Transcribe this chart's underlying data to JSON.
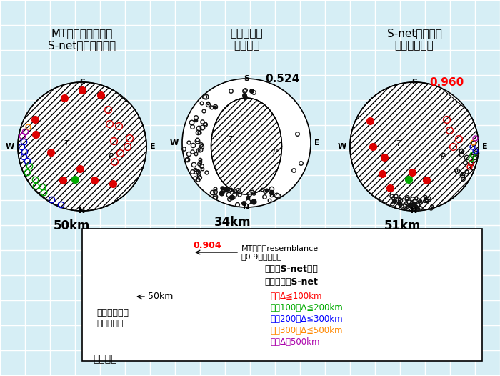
{
  "background_color": "#d6eef5",
  "panel_bg": "#ffffff",
  "title1": "MT解（海域構造で\nS-netをプロット）",
  "title2": "従来の震源\n陸域構造",
  "title3": "S-net入り震源\n陸＋海域構造",
  "depth1": "50km",
  "depth2": "34km",
  "depth3": "51km",
  "resemblance2": "0.524",
  "resemblance3": "0.960",
  "legend_resemblance": "0.904",
  "legend_title": "図の凡例",
  "legend_text1": "黒丸：S-net以外",
  "legend_text2": "カラー丸：S-net",
  "legend_color_labels": [
    "赤：Δ≦100km",
    "緑：100＜Δ≦200km",
    "青：200＜Δ≦300km",
    "橙：300＜Δ≦500km",
    "紫：Δ＞500km"
  ],
  "legend_colors": [
    "#ff0000",
    "#00aa00",
    "#0000ff",
    "#ff8800",
    "#aa00aa"
  ],
  "calc_depth_text": "計算に用いた\n震源の深さ",
  "resemblance_arrow_text": "MT解とのresemblance\n（0.9以上を赤）",
  "font_size_title": 11,
  "font_size_label": 9,
  "font_size_depth": 12
}
